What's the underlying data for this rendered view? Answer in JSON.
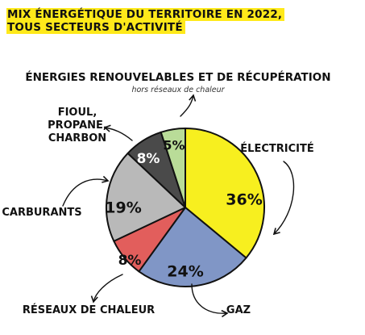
{
  "header": {
    "title_line1": "MIX ÉNERGÉTIQUE DU TERRITOIRE EN 2022,",
    "title_line2": "TOUS SECTEURS D'ACTIVITÉ"
  },
  "chart_data": {
    "type": "pie",
    "title": "MIX ÉNERGÉTIQUE DU TERRITOIRE EN 2022, TOUS SECTEURS D'ACTIVITÉ",
    "unit": "%",
    "slices": [
      {
        "key": "electricite",
        "label": "ÉLECTRICITÉ",
        "value": 36,
        "value_label": "36%",
        "color": "#f7ef1f"
      },
      {
        "key": "gaz",
        "label": "GAZ",
        "value": 24,
        "value_label": "24%",
        "color": "#8096c6"
      },
      {
        "key": "reseaux",
        "label": "RÉSEAUX DE CHALEUR",
        "value": 8,
        "value_label": "8%",
        "color": "#e25e5c"
      },
      {
        "key": "carburants",
        "label": "CARBURANTS",
        "value": 19,
        "value_label": "19%",
        "color": "#b9b9b9"
      },
      {
        "key": "fioul",
        "label": "FIOUL, PROPANE, CHARBON",
        "label_lines": [
          "FIOUL,",
          "PROPANE,",
          "CHARBON"
        ],
        "value": 8,
        "value_label": "8%",
        "color": "#4a4a4a"
      },
      {
        "key": "enr",
        "label": "ÉNERGIES RENOUVELABLES ET DE RÉCUPÉRATION",
        "sublabel": "hors réseaux de chaleur",
        "value": 5,
        "value_label": "5%",
        "color": "#b9dc98"
      }
    ],
    "start": "top",
    "direction": "clockwise",
    "legend": "none"
  }
}
